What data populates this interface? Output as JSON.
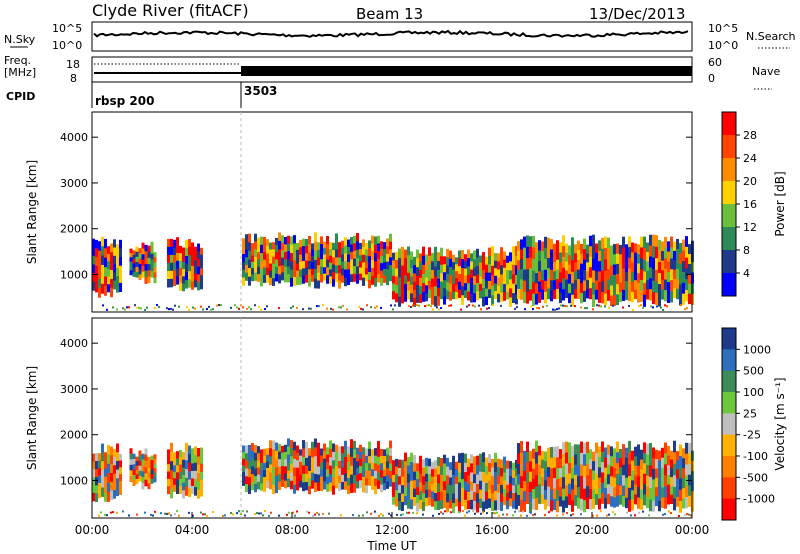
{
  "header": {
    "title": "Clyde River (fitACF)",
    "beam": "Beam 13",
    "date": "13/Dec/2013"
  },
  "noise_panel": {
    "left_label": "N.Sky",
    "right_label": "N.Search",
    "left_ticks": [
      "10^5",
      "10^0"
    ],
    "right_ticks": [
      "10^5",
      "10^0"
    ]
  },
  "freq_panel": {
    "left_label_1": "Freq.",
    "left_label_2": "[MHz]",
    "right_label": "Nave",
    "left_ticks": [
      "18",
      "8"
    ],
    "right_ticks": [
      "60",
      "0"
    ]
  },
  "cpid_panel": {
    "label": "CPID",
    "segments": [
      {
        "name": "rbsp 200",
        "start_hour": 0
      },
      {
        "name": "3503",
        "start_hour": 6
      }
    ]
  },
  "chart_data": [
    {
      "type": "heatmap",
      "panel": "power",
      "ylabel": "Slant Range [km]",
      "yticks": [
        "4000",
        "3000",
        "2000",
        "1000"
      ],
      "ylim": [
        180,
        4550
      ],
      "xlim_hours": [
        0,
        24
      ],
      "colorbar_label": "Power [dB]",
      "colorbar_ticks": [
        "28",
        "24",
        "20",
        "16",
        "12",
        "8",
        "4"
      ],
      "colorbar_colors": [
        "#ff0000",
        "#ff4500",
        "#ff8c00",
        "#ffd000",
        "#6cbf3a",
        "#2e8b57",
        "#1e3a8a",
        "#0000ff"
      ],
      "echo_bands": [
        {
          "t0": 0.0,
          "t1": 1.2,
          "r_low": 600,
          "r_high": 1700
        },
        {
          "t0": 1.5,
          "t1": 2.5,
          "r_low": 900,
          "r_high": 1600
        },
        {
          "t0": 3.0,
          "t1": 4.4,
          "r_low": 700,
          "r_high": 1700
        },
        {
          "t0": 6.0,
          "t1": 12.0,
          "r_low": 800,
          "r_high": 1800
        },
        {
          "t0": 12.0,
          "t1": 17.0,
          "r_low": 400,
          "r_high": 1500
        },
        {
          "t0": 17.0,
          "t1": 24.0,
          "r_low": 400,
          "r_high": 1750
        }
      ]
    },
    {
      "type": "heatmap",
      "panel": "velocity",
      "ylabel": "Slant Range [km]",
      "yticks": [
        "4000",
        "3000",
        "2000",
        "1000"
      ],
      "ylim": [
        180,
        4550
      ],
      "xlim_hours": [
        0,
        24
      ],
      "xticks": [
        "00:00",
        "04:00",
        "08:00",
        "12:00",
        "16:00",
        "20:00",
        "00:00"
      ],
      "xlabel": "Time UT",
      "colorbar_label": "Velocity [m s⁻¹]",
      "colorbar_ticks": [
        "1000",
        "500",
        "100",
        "25",
        "-25",
        "-100",
        "-500",
        "-1000"
      ],
      "colorbar_colors": [
        "#1e3a8a",
        "#2e6fbd",
        "#3e8b5a",
        "#6cc83a",
        "#bfbfbf",
        "#ffb000",
        "#ff8000",
        "#ff4000",
        "#ff0000"
      ],
      "echo_bands": [
        {
          "t0": 0.0,
          "t1": 1.2,
          "r_low": 600,
          "r_high": 1700
        },
        {
          "t0": 1.5,
          "t1": 2.5,
          "r_low": 900,
          "r_high": 1600
        },
        {
          "t0": 3.0,
          "t1": 4.4,
          "r_low": 700,
          "r_high": 1700
        },
        {
          "t0": 6.0,
          "t1": 12.0,
          "r_low": 800,
          "r_high": 1800
        },
        {
          "t0": 12.0,
          "t1": 17.0,
          "r_low": 400,
          "r_high": 1500
        },
        {
          "t0": 17.0,
          "t1": 24.0,
          "r_low": 400,
          "r_high": 1750
        }
      ]
    }
  ]
}
